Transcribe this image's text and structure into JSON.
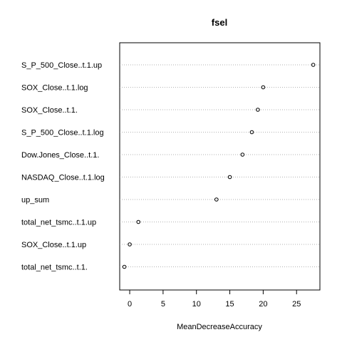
{
  "chart_data": {
    "type": "scatter",
    "title": "fsel",
    "xlabel": "MeanDecreaseAccuracy",
    "ylabel": "",
    "xlim": [
      -1.5,
      28.5
    ],
    "xticks": [
      0,
      5,
      10,
      15,
      20,
      25
    ],
    "grid": "horizontal-dotted",
    "categories": [
      "S_P_500_Close..t.1.up",
      "SOX_Close..t.1.log",
      "SOX_Close..t.1.",
      "S_P_500_Close..t.1.log",
      "Dow.Jones_Close..t.1.",
      "NASDAQ_Close..t.1.log",
      "up_sum",
      "total_net_tsmc..t.1.up",
      "SOX_Close..t.1.up",
      "total_net_tsmc..t.1."
    ],
    "values": [
      27.5,
      20.0,
      19.2,
      18.3,
      16.9,
      15.0,
      13.0,
      1.3,
      0.0,
      -0.8
    ]
  }
}
